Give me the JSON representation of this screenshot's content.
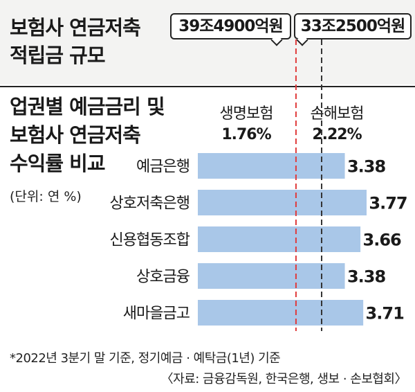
{
  "top_section": {
    "title_lines": [
      "보험사 연금저축",
      "적립금 규모"
    ],
    "amounts": [
      {
        "label": "39조4900억원",
        "color": "#e03a3a"
      },
      {
        "label": "33조2500억원",
        "color": "#222222"
      }
    ]
  },
  "chart_title_lines": [
    "업권별 예금금리 및",
    "보험사 연금저축",
    "수익률 비교"
  ],
  "unit": "(단위: 연 %)",
  "footnote": "*2022년 3분기 말 기준, 정기예금 · 예탁금(1년) 기준",
  "source": "〈자료: 금융감독원, 한국은행, 생보 · 손보협회〉",
  "chart_data": {
    "type": "bar",
    "orientation": "horizontal",
    "categories": [
      "예금은행",
      "상호저축은행",
      "신용협동조합",
      "상호금융",
      "새마을금고"
    ],
    "values": [
      3.38,
      3.77,
      3.66,
      3.38,
      3.71
    ],
    "value_labels": [
      "3.38",
      "3.77",
      "3.66",
      "3.38",
      "3.71"
    ],
    "xlim": [
      0,
      3.77
    ],
    "bar_color": "#a9c7e8",
    "reference_lines": [
      {
        "name": "생명보험",
        "value": 1.76,
        "label": "1.76%",
        "color": "#e03a3a",
        "style": "dashed"
      },
      {
        "name": "손해보험",
        "value": 2.22,
        "label": "2.22%",
        "color": "#333333",
        "style": "dashed"
      }
    ]
  }
}
